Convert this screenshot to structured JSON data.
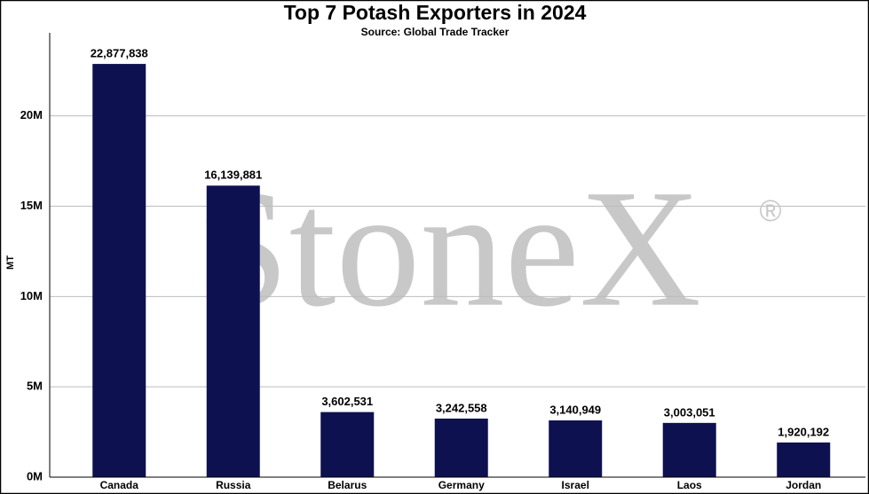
{
  "chart_data": {
    "type": "bar",
    "title": "Top 7 Potash Exporters in 2024",
    "subtitle": "Source: Global Trade Tracker",
    "y_label": "MT",
    "watermark": {
      "text": "StoneX",
      "mark": "®"
    },
    "categories": [
      "Canada",
      "Russia",
      "Belarus",
      "Germany",
      "Israel",
      "Laos",
      "Jordan"
    ],
    "values": [
      22877838,
      16139881,
      3602531,
      3242558,
      3140949,
      3003051,
      1920192
    ],
    "value_labels": [
      "22,877,838",
      "16,139,881",
      "3,602,531",
      "3,242,558",
      "3,140,949",
      "3,003,051",
      "1,920,192"
    ],
    "color": "#0d1150",
    "ylim": [
      0,
      24600000
    ],
    "yticks": [
      {
        "value": 0,
        "label": "0M"
      },
      {
        "value": 5000000,
        "label": "5M"
      },
      {
        "value": 10000000,
        "label": "10M"
      },
      {
        "value": 15000000,
        "label": "15M"
      },
      {
        "value": 20000000,
        "label": "20M"
      }
    ],
    "grid": true
  }
}
